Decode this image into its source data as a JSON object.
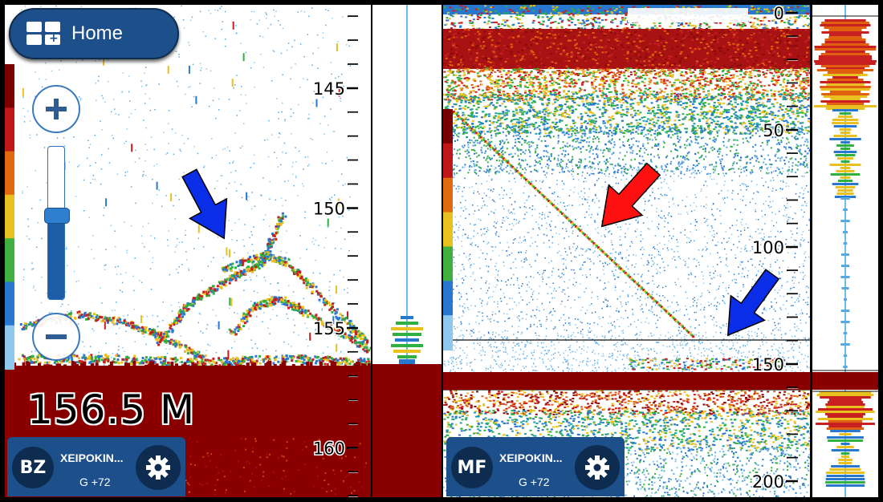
{
  "home": {
    "label": "Home",
    "icon": "grid-plus-icon"
  },
  "zoom": {
    "in_icon": "plus-icon",
    "out_icon": "minus-icon",
    "level": 0.55
  },
  "depth_readout": "156.5 M",
  "left_scale": {
    "labels": [
      "145",
      "150",
      "155",
      "160"
    ]
  },
  "right_scale": {
    "labels": [
      "0",
      "50",
      "100",
      "150",
      "200"
    ]
  },
  "cards": [
    {
      "initials": "BZ",
      "name": "XEIPOKIN...",
      "sub": "G +72",
      "settings_icon": "gear-icon"
    },
    {
      "initials": "MF",
      "name": "XEIPOKIN...",
      "sub": "G +72",
      "settings_icon": "gear-icon"
    }
  ],
  "colors": {
    "bottom": "#8a0000",
    "echo_red": "#c81e1e",
    "echo_yellow": "#e8c020",
    "echo_green": "#30b040",
    "echo_blue": "#2878d0",
    "arrow_blue": "#0a2ee8",
    "arrow_red": "#ff1010",
    "ui_blue": "#1d4f8a"
  },
  "markers": {
    "blue_arrow_icon": "blue-arrow-icon",
    "red_arrow_icon": "red-arrow-icon"
  }
}
